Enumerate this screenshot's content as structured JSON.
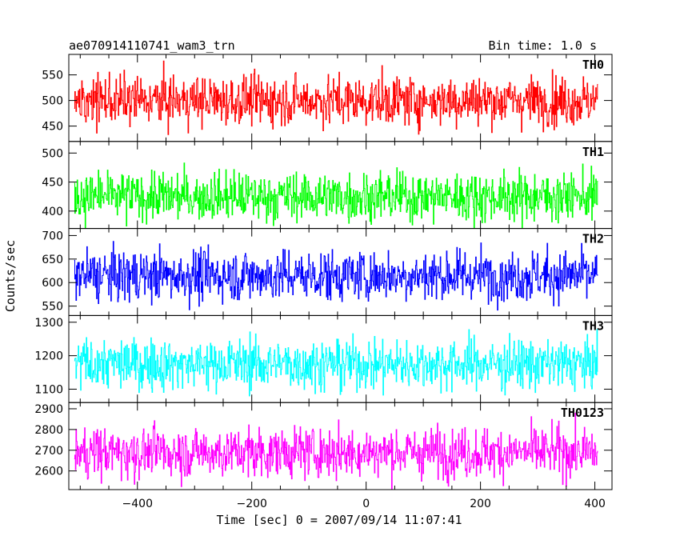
{
  "header": {
    "title": "ae070914110741_wam3_trn",
    "bin_time": "Bin time: 1.0 s"
  },
  "axes": {
    "ylabel": "Counts/sec",
    "xlabel": "Time [sec] 0 = 2007/09/14 11:07:41",
    "x_ticks": [
      "−400",
      "−200",
      "0",
      "200",
      "400"
    ]
  },
  "chart_data": {
    "type": "line",
    "x_range": [
      -510,
      405
    ],
    "xlim": [
      -520,
      430
    ],
    "x_ticks": [
      -400,
      -200,
      0,
      200,
      400
    ],
    "panels": [
      {
        "name": "TH0",
        "color": "#ff0000",
        "mean": 500,
        "sigma": 24,
        "ylim": [
          420,
          590
        ],
        "y_ticks": [
          450,
          500,
          550
        ],
        "y_tick_labels": [
          "450",
          "500",
          "550"
        ]
      },
      {
        "name": "TH1",
        "color": "#00ff00",
        "mean": 425,
        "sigma": 21,
        "ylim": [
          370,
          520
        ],
        "y_ticks": [
          400,
          450,
          500
        ],
        "y_tick_labels": [
          "400",
          "450",
          "500"
        ]
      },
      {
        "name": "TH2",
        "color": "#0000ff",
        "mean": 615,
        "sigma": 27,
        "ylim": [
          530,
          715
        ],
        "y_ticks": [
          550,
          600,
          650,
          700
        ],
        "y_tick_labels": [
          "550",
          "600",
          "650",
          "700"
        ]
      },
      {
        "name": "TH3",
        "color": "#00ffff",
        "mean": 1175,
        "sigma": 38,
        "ylim": [
          1060,
          1320
        ],
        "y_ticks": [
          1100,
          1200,
          1300
        ],
        "y_tick_labels": [
          "1100",
          "1200",
          "1300"
        ]
      },
      {
        "name": "TH0123",
        "color": "#ff00ff",
        "mean": 2690,
        "sigma": 60,
        "ylim": [
          2510,
          2930
        ],
        "y_ticks": [
          2600,
          2700,
          2800,
          2900
        ],
        "y_tick_labels": [
          "2600",
          "2700",
          "2800",
          "2900"
        ]
      }
    ]
  }
}
